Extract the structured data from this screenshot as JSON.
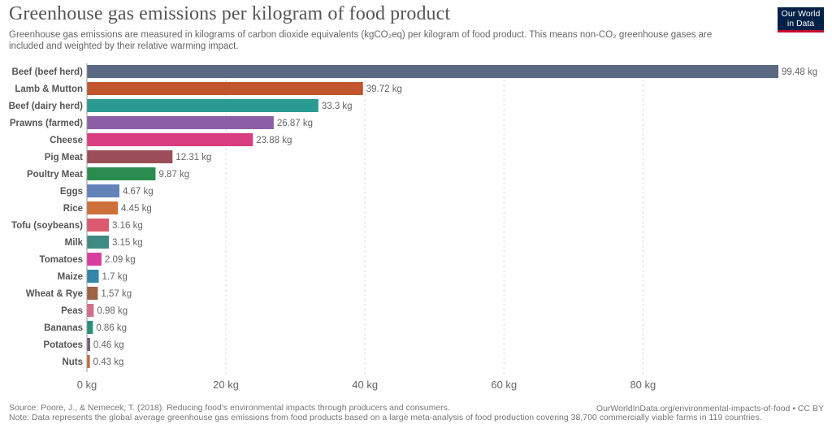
{
  "header": {
    "title": "Greenhouse gas emissions per kilogram of food product",
    "subtitle": "Greenhouse gas emissions are measured in kilograms of carbon dioxide equivalents (kgCO₂eq) per kilogram of food product. This means non-CO₂ greenhouse gases are included and weighted by their relative warming impact.",
    "logo_line1": "Our World",
    "logo_line2": "in Data"
  },
  "footer": {
    "source": "Source: Poore, J., & Nemecek, T. (2018). Reducing food's environmental impacts through producers and consumers.",
    "note": "Note: Data represents the global average greenhouse gas emissions from food products based on a large meta-analysis of food production covering 38,700 commercially viable farms in 119 countries.",
    "link": "OurWorldInData.org/environmental-impacts-of-food • CC BY"
  },
  "chart_data": {
    "type": "bar",
    "orientation": "horizontal",
    "unit": "kg",
    "categories": [
      "Beef (beef herd)",
      "Lamb & Mutton",
      "Beef (dairy herd)",
      "Prawns (farmed)",
      "Cheese",
      "Pig Meat",
      "Poultry Meat",
      "Eggs",
      "Rice",
      "Tofu (soybeans)",
      "Milk",
      "Tomatoes",
      "Maize",
      "Wheat & Rye",
      "Peas",
      "Bananas",
      "Potatoes",
      "Nuts"
    ],
    "values": [
      99.48,
      39.72,
      33.3,
      26.87,
      23.88,
      12.31,
      9.87,
      4.67,
      4.45,
      3.16,
      3.15,
      2.09,
      1.7,
      1.57,
      0.98,
      0.86,
      0.46,
      0.43
    ],
    "value_labels": [
      "99.48 kg",
      "39.72 kg",
      "33.3 kg",
      "26.87 kg",
      "23.88 kg",
      "12.31 kg",
      "9.87 kg",
      "4.67 kg",
      "4.45 kg",
      "3.16 kg",
      "3.15 kg",
      "2.09 kg",
      "1.7 kg",
      "1.57 kg",
      "0.98 kg",
      "0.86 kg",
      "0.46 kg",
      "0.43 kg"
    ],
    "colors": [
      "#5b6985",
      "#c1552e",
      "#2b9a92",
      "#8c5ea6",
      "#d83d80",
      "#9b4e57",
      "#2a8c4f",
      "#6382b8",
      "#cd703a",
      "#dc5a6f",
      "#3f8a83",
      "#d83f9d",
      "#3385a9",
      "#9e6446",
      "#d47089",
      "#28907a",
      "#7d5a7e",
      "#c26e3d"
    ],
    "xlim": [
      0,
      100
    ],
    "xticks": [
      0,
      20,
      40,
      60,
      80
    ],
    "xtick_labels": [
      "0 kg",
      "20 kg",
      "40 kg",
      "60 kg",
      "80 kg"
    ],
    "grid": true
  }
}
